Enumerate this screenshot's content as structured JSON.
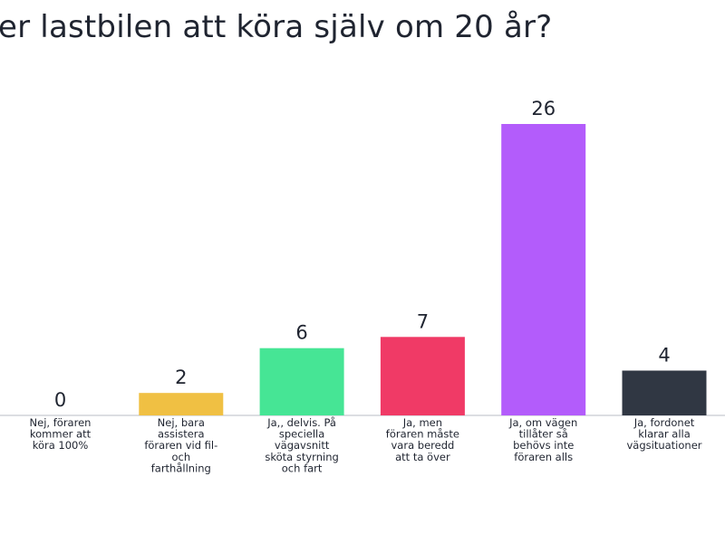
{
  "chart_data": {
    "type": "bar",
    "title": "er lastbilen att köra själv om 20 år?",
    "categories": [
      [
        "Nej, föraren",
        "kommer att",
        "köra 100%"
      ],
      [
        "Nej, bara",
        "assistera",
        "föraren vid fil-",
        "och",
        "farthållning"
      ],
      [
        "Ja,, delvis. På",
        "speciella",
        "vägavsnitt",
        "sköta styrning",
        "och fart"
      ],
      [
        "Ja, men",
        "föraren måste",
        "vara beredd",
        "att ta över"
      ],
      [
        "Ja, om vägen",
        "tillåter så",
        "behövs inte",
        "föraren alls"
      ],
      [
        "Ja, fordonet",
        "klarar alla",
        "vägsituationer"
      ]
    ],
    "values": [
      0,
      2,
      6,
      7,
      26,
      4
    ],
    "colors": [
      "#5b7cf0",
      "#f0c043",
      "#46e595",
      "#f03a66",
      "#b35cfb",
      "#303743"
    ],
    "ylim": [
      0,
      26
    ],
    "grid": false,
    "legend": "none"
  }
}
